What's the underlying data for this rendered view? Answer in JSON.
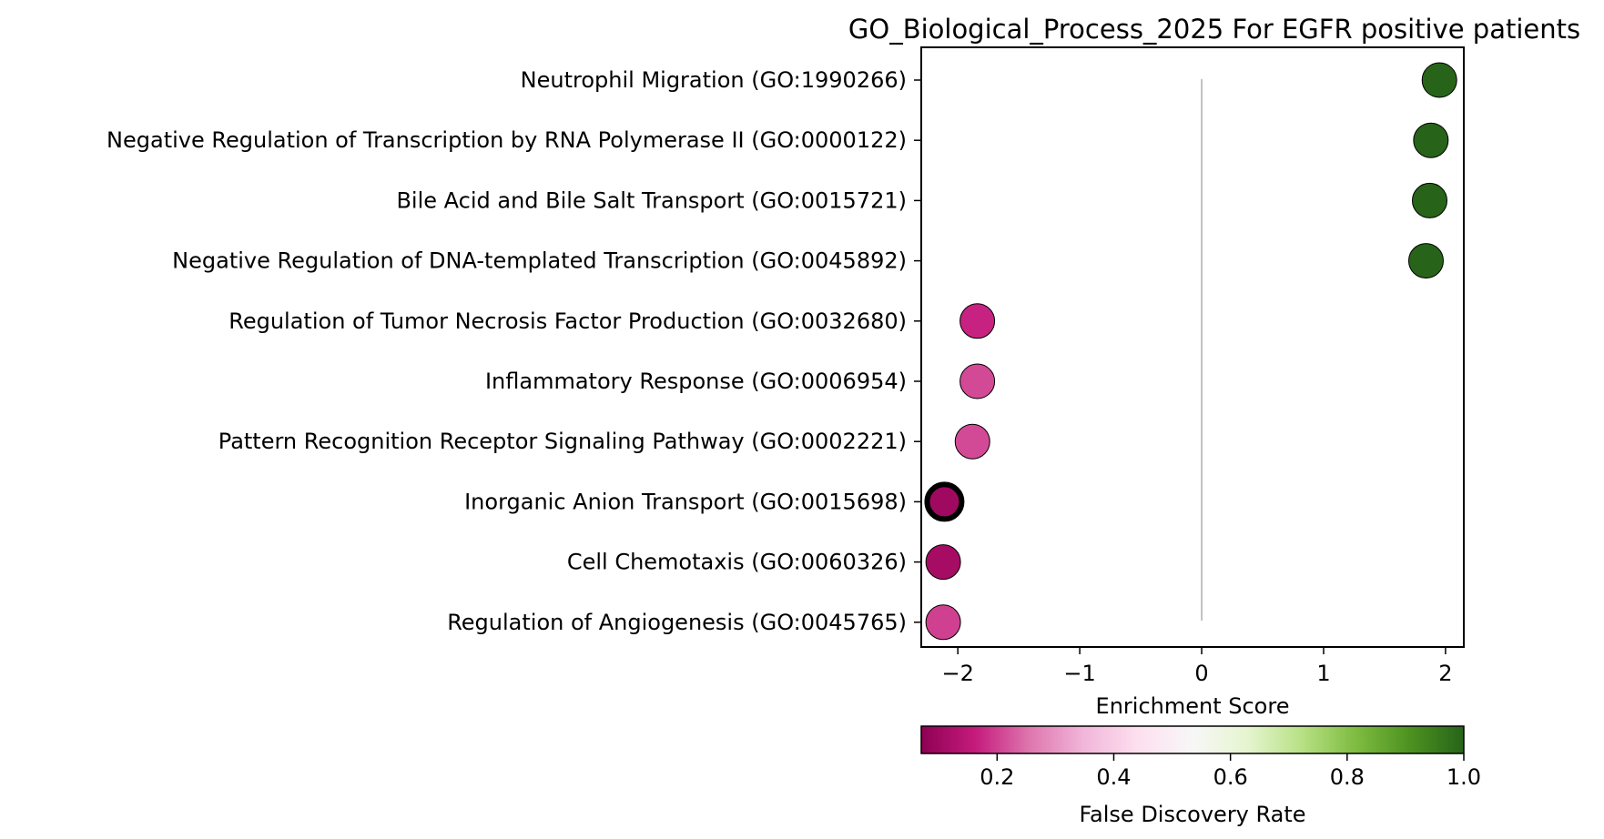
{
  "chart_data": {
    "type": "scatter",
    "title": "GO_Biological_Process_2025 For EGFR positive patients",
    "xlabel": "Enrichment Score",
    "xlim": [
      -2.3,
      2.15
    ],
    "xticks": [
      -2,
      -1,
      0,
      1,
      2
    ],
    "xtick_labels": [
      "−2",
      "−1",
      "0",
      "1",
      "2"
    ],
    "grid": false,
    "reference_line_x": 0,
    "categories": [
      "Neutrophil Migration (GO:1990266)",
      "Negative Regulation of Transcription by RNA Polymerase II (GO:0000122)",
      "Bile Acid and Bile Salt Transport (GO:0015721)",
      "Negative Regulation of DNA-templated Transcription (GO:0045892)",
      "Regulation of Tumor Necrosis Factor Production (GO:0032680)",
      "Inflammatory Response (GO:0006954)",
      "Pattern Recognition Receptor Signaling Pathway (GO:0002221)",
      "Inorganic Anion Transport (GO:0015698)",
      "Cell Chemotaxis (GO:0060326)",
      "Regulation of Angiogenesis (GO:0045765)"
    ],
    "points": [
      {
        "category": "Neutrophil Migration (GO:1990266)",
        "x": 1.95,
        "fdr": 1.0,
        "highlight": false
      },
      {
        "category": "Negative Regulation of Transcription by RNA Polymerase II (GO:0000122)",
        "x": 1.88,
        "fdr": 1.0,
        "highlight": false
      },
      {
        "category": "Bile Acid and Bile Salt Transport (GO:0015721)",
        "x": 1.87,
        "fdr": 1.0,
        "highlight": false
      },
      {
        "category": "Negative Regulation of DNA-templated Transcription (GO:0045892)",
        "x": 1.84,
        "fdr": 1.0,
        "highlight": false
      },
      {
        "category": "Regulation of Tumor Necrosis Factor Production (GO:0032680)",
        "x": -1.84,
        "fdr": 0.17,
        "highlight": false
      },
      {
        "category": "Inflammatory Response (GO:0006954)",
        "x": -1.84,
        "fdr": 0.21,
        "highlight": false
      },
      {
        "category": "Pattern Recognition Receptor Signaling Pathway (GO:0002221)",
        "x": -1.88,
        "fdr": 0.21,
        "highlight": false
      },
      {
        "category": "Inorganic Anion Transport (GO:0015698)",
        "x": -2.11,
        "fdr": 0.1,
        "highlight": true
      },
      {
        "category": "Cell Chemotaxis (GO:0060326)",
        "x": -2.12,
        "fdr": 0.11,
        "highlight": false
      },
      {
        "category": "Regulation of Angiogenesis (GO:0045765)",
        "x": -2.12,
        "fdr": 0.2,
        "highlight": false
      }
    ],
    "colorbar": {
      "label": "False Discovery Rate",
      "range": [
        0.07,
        1.0
      ],
      "ticks": [
        0.2,
        0.4,
        0.6,
        0.8,
        1.0
      ],
      "tick_labels": [
        "0.2",
        "0.4",
        "0.6",
        "0.8",
        "1.0"
      ],
      "colormap": "PiYG",
      "colors": [
        "#8e0152",
        "#c51b7d",
        "#de77ae",
        "#f1b6da",
        "#fde0ef",
        "#f7f7f7",
        "#e6f5d0",
        "#b8e186",
        "#7fbc41",
        "#4d9221",
        "#276419"
      ]
    }
  }
}
